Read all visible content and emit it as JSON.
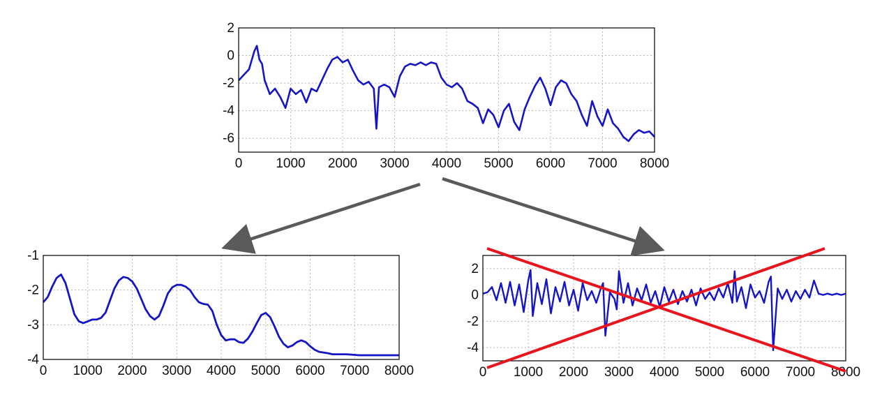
{
  "chart_data": [
    {
      "type": "line",
      "id": "top",
      "xlim": [
        0,
        8000
      ],
      "ylim": [
        -7,
        2
      ],
      "x_ticks": [
        0,
        1000,
        2000,
        3000,
        4000,
        5000,
        6000,
        7000,
        8000
      ],
      "y_ticks": [
        2,
        0,
        -2,
        -4,
        -6
      ],
      "grid": true,
      "series": [
        {
          "color": "#1515c8",
          "x": [
            0,
            100,
            200,
            300,
            350,
            400,
            450,
            500,
            600,
            700,
            800,
            900,
            1000,
            1100,
            1200,
            1300,
            1400,
            1500,
            1600,
            1700,
            1800,
            1900,
            2000,
            2100,
            2200,
            2300,
            2400,
            2500,
            2600,
            2650,
            2700,
            2800,
            2900,
            3000,
            3100,
            3200,
            3300,
            3400,
            3500,
            3600,
            3700,
            3800,
            3900,
            4000,
            4100,
            4200,
            4300,
            4400,
            4500,
            4600,
            4700,
            4800,
            4900,
            5000,
            5100,
            5200,
            5300,
            5400,
            5500,
            5600,
            5700,
            5800,
            5900,
            6000,
            6100,
            6200,
            6300,
            6400,
            6500,
            6600,
            6700,
            6800,
            6900,
            7000,
            7100,
            7200,
            7300,
            7400,
            7500,
            7600,
            7700,
            7800,
            7900,
            8000
          ],
          "values": [
            -1.8,
            -1.4,
            -1.0,
            0.3,
            0.7,
            -0.3,
            -0.6,
            -1.8,
            -2.8,
            -2.4,
            -3.0,
            -3.8,
            -2.4,
            -2.8,
            -2.5,
            -3.4,
            -2.4,
            -2.6,
            -1.8,
            -1.0,
            -0.3,
            -0.1,
            -0.5,
            -0.3,
            -1.1,
            -1.8,
            -2.1,
            -1.9,
            -2.4,
            -5.3,
            -2.3,
            -2.1,
            -2.3,
            -3.0,
            -1.5,
            -0.8,
            -0.6,
            -0.7,
            -0.5,
            -0.7,
            -0.5,
            -0.6,
            -1.6,
            -2.1,
            -2.3,
            -2.0,
            -2.4,
            -3.3,
            -3.5,
            -3.8,
            -4.9,
            -3.9,
            -4.3,
            -5.2,
            -4.0,
            -3.5,
            -4.8,
            -5.4,
            -3.9,
            -3.0,
            -2.2,
            -1.6,
            -2.4,
            -3.6,
            -2.3,
            -1.8,
            -2.0,
            -2.8,
            -3.3,
            -4.3,
            -5.1,
            -3.3,
            -4.4,
            -5.1,
            -3.9,
            -4.9,
            -5.3,
            -5.9,
            -6.2,
            -5.7,
            -5.4,
            -5.6,
            -5.5,
            -5.9
          ]
        }
      ]
    },
    {
      "type": "line",
      "id": "bottom-left",
      "xlim": [
        0,
        8000
      ],
      "ylim": [
        -4,
        -1
      ],
      "x_ticks": [
        0,
        1000,
        2000,
        3000,
        4000,
        5000,
        6000,
        7000,
        8000
      ],
      "y_ticks": [
        -1,
        -2,
        -3,
        -4
      ],
      "grid": true,
      "series": [
        {
          "color": "#1515c8",
          "x": [
            0,
            100,
            200,
            300,
            400,
            500,
            600,
            700,
            800,
            900,
            1000,
            1100,
            1200,
            1300,
            1400,
            1500,
            1600,
            1700,
            1800,
            1900,
            2000,
            2100,
            2200,
            2300,
            2400,
            2500,
            2600,
            2700,
            2800,
            2900,
            3000,
            3100,
            3200,
            3300,
            3400,
            3500,
            3600,
            3700,
            3800,
            3900,
            4000,
            4100,
            4200,
            4300,
            4400,
            4500,
            4600,
            4700,
            4800,
            4900,
            5000,
            5100,
            5200,
            5300,
            5400,
            5500,
            5600,
            5700,
            5800,
            5900,
            6000,
            6100,
            6200,
            6300,
            6400,
            6500,
            6600,
            6700,
            6800,
            6900,
            7000,
            7100,
            7200,
            7300,
            7400,
            7500,
            7600,
            7700,
            7800,
            7900,
            8000
          ],
          "values": [
            -2.35,
            -2.2,
            -1.9,
            -1.65,
            -1.55,
            -1.8,
            -2.25,
            -2.7,
            -2.9,
            -2.95,
            -2.9,
            -2.85,
            -2.85,
            -2.8,
            -2.65,
            -2.3,
            -1.95,
            -1.72,
            -1.62,
            -1.65,
            -1.75,
            -1.95,
            -2.25,
            -2.55,
            -2.75,
            -2.85,
            -2.75,
            -2.45,
            -2.1,
            -1.92,
            -1.85,
            -1.85,
            -1.9,
            -2.0,
            -2.2,
            -2.35,
            -2.4,
            -2.42,
            -2.6,
            -3.0,
            -3.3,
            -3.45,
            -3.42,
            -3.42,
            -3.5,
            -3.52,
            -3.4,
            -3.2,
            -2.95,
            -2.72,
            -2.66,
            -2.78,
            -3.05,
            -3.35,
            -3.55,
            -3.65,
            -3.6,
            -3.5,
            -3.45,
            -3.5,
            -3.62,
            -3.72,
            -3.78,
            -3.8,
            -3.82,
            -3.85,
            -3.85,
            -3.85,
            -3.85,
            -3.86,
            -3.87,
            -3.88,
            -3.88,
            -3.88,
            -3.88,
            -3.88,
            -3.88,
            -3.88,
            -3.88,
            -3.88,
            -3.88
          ]
        }
      ]
    },
    {
      "type": "line",
      "id": "bottom-right",
      "xlim": [
        0,
        8000
      ],
      "ylim": [
        -5,
        3
      ],
      "x_ticks": [
        0,
        1000,
        2000,
        3000,
        4000,
        5000,
        6000,
        7000,
        8000
      ],
      "y_ticks": [
        2,
        0,
        -2,
        -4
      ],
      "grid": true,
      "series": [
        {
          "color": "#1515c8",
          "x": [
            0,
            100,
            200,
            300,
            400,
            500,
            600,
            700,
            800,
            900,
            1000,
            1050,
            1100,
            1200,
            1300,
            1400,
            1500,
            1600,
            1700,
            1800,
            1900,
            2000,
            2100,
            2200,
            2300,
            2400,
            2500,
            2600,
            2650,
            2700,
            2800,
            2900,
            2950,
            3000,
            3100,
            3200,
            3300,
            3400,
            3500,
            3600,
            3700,
            3800,
            3900,
            4000,
            4100,
            4200,
            4300,
            4400,
            4500,
            4600,
            4700,
            4800,
            4900,
            5000,
            5100,
            5200,
            5300,
            5400,
            5500,
            5550,
            5600,
            5700,
            5800,
            5900,
            6000,
            6100,
            6200,
            6300,
            6350,
            6400,
            6500,
            6600,
            6700,
            6800,
            6900,
            7000,
            7100,
            7200,
            7300,
            7400,
            7500,
            7600,
            7700,
            7800,
            7900,
            8000
          ],
          "values": [
            0.1,
            0.2,
            0.6,
            -0.4,
            0.9,
            -0.6,
            1.0,
            -0.8,
            0.8,
            -1.3,
            1.1,
            1.9,
            -1.6,
            0.9,
            -0.7,
            1.2,
            -1.4,
            0.6,
            -0.5,
            1.0,
            -0.8,
            0.4,
            -1.2,
            0.9,
            -0.4,
            0.3,
            -0.6,
            0.5,
            0.9,
            -3.1,
            0.2,
            -0.3,
            -1.1,
            1.8,
            -0.6,
            0.9,
            -0.8,
            0.5,
            -0.4,
            0.8,
            -0.6,
            0.3,
            -0.9,
            0.6,
            -0.5,
            0.4,
            -0.7,
            0.3,
            -0.5,
            0.4,
            -0.8,
            0.5,
            -0.3,
            0.2,
            -0.4,
            0.5,
            -0.2,
            0.9,
            -0.6,
            1.8,
            -0.5,
            0.6,
            -1.0,
            0.8,
            -0.2,
            0.3,
            -0.6,
            1.0,
            1.4,
            -4.2,
            0.5,
            -0.3,
            0.4,
            -0.5,
            0.3,
            -0.3,
            0.4,
            -0.2,
            1.1,
            0.1,
            0.0,
            0.1,
            0.0,
            0.1,
            0.0,
            0.1
          ]
        }
      ]
    }
  ],
  "annotations": {
    "arrow_color": "#5a5a5a",
    "cross_color": "#e8141e"
  }
}
